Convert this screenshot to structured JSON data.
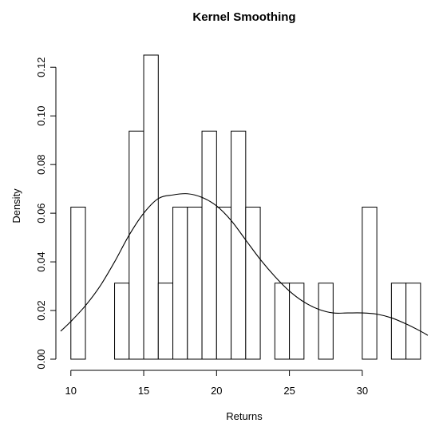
{
  "chart_data": {
    "type": "bar",
    "title": "Kernel Smoothing",
    "xlabel": "Returns",
    "ylabel": "Density",
    "xlim": [
      9.3,
      34.5
    ],
    "ylim": [
      0,
      0.125
    ],
    "x_ticks": [
      10,
      15,
      20,
      25,
      30
    ],
    "y_ticks": [
      0.0,
      0.02,
      0.04,
      0.06,
      0.08,
      0.1,
      0.12
    ],
    "y_tick_labels": [
      "0.00",
      "0.02",
      "0.04",
      "0.06",
      "0.08",
      "0.10",
      "0.12"
    ],
    "histogram": {
      "bin_width": 1,
      "bins": [
        {
          "start": 10,
          "end": 11,
          "density": 0.0625
        },
        {
          "start": 11,
          "end": 12,
          "density": 0
        },
        {
          "start": 12,
          "end": 13,
          "density": 0
        },
        {
          "start": 13,
          "end": 14,
          "density": 0.03125
        },
        {
          "start": 14,
          "end": 15,
          "density": 0.09375
        },
        {
          "start": 15,
          "end": 16,
          "density": 0.125
        },
        {
          "start": 16,
          "end": 17,
          "density": 0.03125
        },
        {
          "start": 17,
          "end": 18,
          "density": 0.0625
        },
        {
          "start": 18,
          "end": 19,
          "density": 0.0625
        },
        {
          "start": 19,
          "end": 20,
          "density": 0.09375
        },
        {
          "start": 20,
          "end": 21,
          "density": 0.0625
        },
        {
          "start": 21,
          "end": 22,
          "density": 0.09375
        },
        {
          "start": 22,
          "end": 23,
          "density": 0.0625
        },
        {
          "start": 23,
          "end": 24,
          "density": 0
        },
        {
          "start": 24,
          "end": 25,
          "density": 0.03125
        },
        {
          "start": 25,
          "end": 26,
          "density": 0.03125
        },
        {
          "start": 26,
          "end": 27,
          "density": 0
        },
        {
          "start": 27,
          "end": 28,
          "density": 0.03125
        },
        {
          "start": 28,
          "end": 29,
          "density": 0
        },
        {
          "start": 29,
          "end": 30,
          "density": 0
        },
        {
          "start": 30,
          "end": 31,
          "density": 0.0625
        },
        {
          "start": 31,
          "end": 32,
          "density": 0
        },
        {
          "start": 32,
          "end": 33,
          "density": 0.03125
        },
        {
          "start": 33,
          "end": 34,
          "density": 0.03125
        }
      ]
    },
    "density_curve": {
      "x": [
        9.3,
        10,
        11,
        12,
        13,
        14,
        15,
        16,
        17,
        18,
        19,
        20,
        21,
        22,
        23,
        24,
        25,
        26,
        27,
        28,
        29,
        30,
        31,
        32,
        33,
        34,
        34.5
      ],
      "y": [
        0.0115,
        0.0155,
        0.022,
        0.03,
        0.04,
        0.051,
        0.06,
        0.066,
        0.0675,
        0.068,
        0.0665,
        0.063,
        0.057,
        0.049,
        0.041,
        0.034,
        0.028,
        0.0235,
        0.0205,
        0.019,
        0.019,
        0.019,
        0.0185,
        0.017,
        0.0145,
        0.0115,
        0.0098
      ]
    },
    "grid": false,
    "legend": "none"
  }
}
